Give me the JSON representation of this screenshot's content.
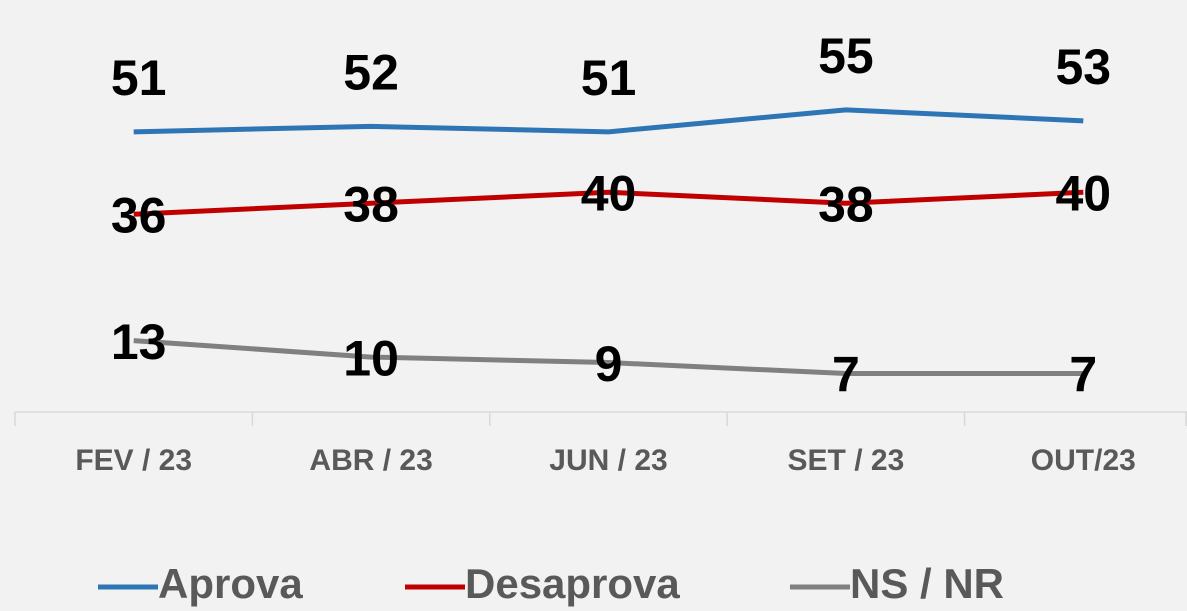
{
  "chart_data": {
    "type": "line",
    "categories": [
      "FEV / 23",
      "ABR / 23",
      "JUN / 23",
      "SET / 23",
      "OUT/23"
    ],
    "series": [
      {
        "name": "Aprova",
        "color": "#2e75b6",
        "values": [
          51,
          52,
          51,
          55,
          53
        ]
      },
      {
        "name": "Desaprova",
        "color": "#c00000",
        "values": [
          36,
          38,
          40,
          38,
          40
        ]
      },
      {
        "name": "NS / NR",
        "color": "#808080",
        "values": [
          13,
          10,
          9,
          7,
          7
        ]
      }
    ],
    "ylim": [
      0,
      75
    ],
    "legend": "bottom"
  }
}
